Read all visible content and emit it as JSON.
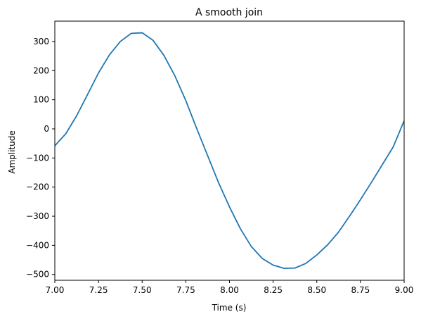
{
  "chart_data": {
    "type": "line",
    "title": "A smooth join",
    "xlabel": "Time (s)",
    "ylabel": "Amplitude",
    "xlim": [
      7.0,
      9.0
    ],
    "ylim": [
      -520,
      370
    ],
    "grid": false,
    "x_ticks": [
      {
        "value": 7.0,
        "label": "7.00"
      },
      {
        "value": 7.25,
        "label": "7.25"
      },
      {
        "value": 7.5,
        "label": "7.50"
      },
      {
        "value": 7.75,
        "label": "7.75"
      },
      {
        "value": 8.0,
        "label": "8.00"
      },
      {
        "value": 8.25,
        "label": "8.25"
      },
      {
        "value": 8.5,
        "label": "8.50"
      },
      {
        "value": 8.75,
        "label": "8.75"
      },
      {
        "value": 9.0,
        "label": "9.00"
      }
    ],
    "y_ticks": [
      {
        "value": 300,
        "label": "300"
      },
      {
        "value": 200,
        "label": "200"
      },
      {
        "value": 100,
        "label": "100"
      },
      {
        "value": 0,
        "label": "0"
      },
      {
        "value": -100,
        "label": "−100"
      },
      {
        "value": -200,
        "label": "−200"
      },
      {
        "value": -300,
        "label": "−300"
      },
      {
        "value": -400,
        "label": "−400"
      },
      {
        "value": -500,
        "label": "−500"
      }
    ],
    "series": [
      {
        "color": "#1f77b4",
        "points": [
          [
            7.0,
            -58
          ],
          [
            7.0625,
            -17
          ],
          [
            7.125,
            45
          ],
          [
            7.1875,
            118
          ],
          [
            7.25,
            192
          ],
          [
            7.3125,
            254
          ],
          [
            7.375,
            300
          ],
          [
            7.4375,
            328
          ],
          [
            7.5,
            330
          ],
          [
            7.5625,
            304
          ],
          [
            7.625,
            252
          ],
          [
            7.6875,
            182
          ],
          [
            7.75,
            97
          ],
          [
            7.8125,
            1
          ],
          [
            7.875,
            -92
          ],
          [
            7.9375,
            -185
          ],
          [
            8.0,
            -268
          ],
          [
            8.0625,
            -343
          ],
          [
            8.125,
            -404
          ],
          [
            8.1875,
            -445
          ],
          [
            8.25,
            -468
          ],
          [
            8.3125,
            -479
          ],
          [
            8.375,
            -478
          ],
          [
            8.4375,
            -462
          ],
          [
            8.5,
            -433
          ],
          [
            8.5625,
            -398
          ],
          [
            8.625,
            -354
          ],
          [
            8.6875,
            -300
          ],
          [
            8.75,
            -243
          ],
          [
            8.8125,
            -184
          ],
          [
            8.875,
            -123
          ],
          [
            8.9375,
            -62
          ],
          [
            9.0,
            28
          ]
        ]
      }
    ]
  }
}
